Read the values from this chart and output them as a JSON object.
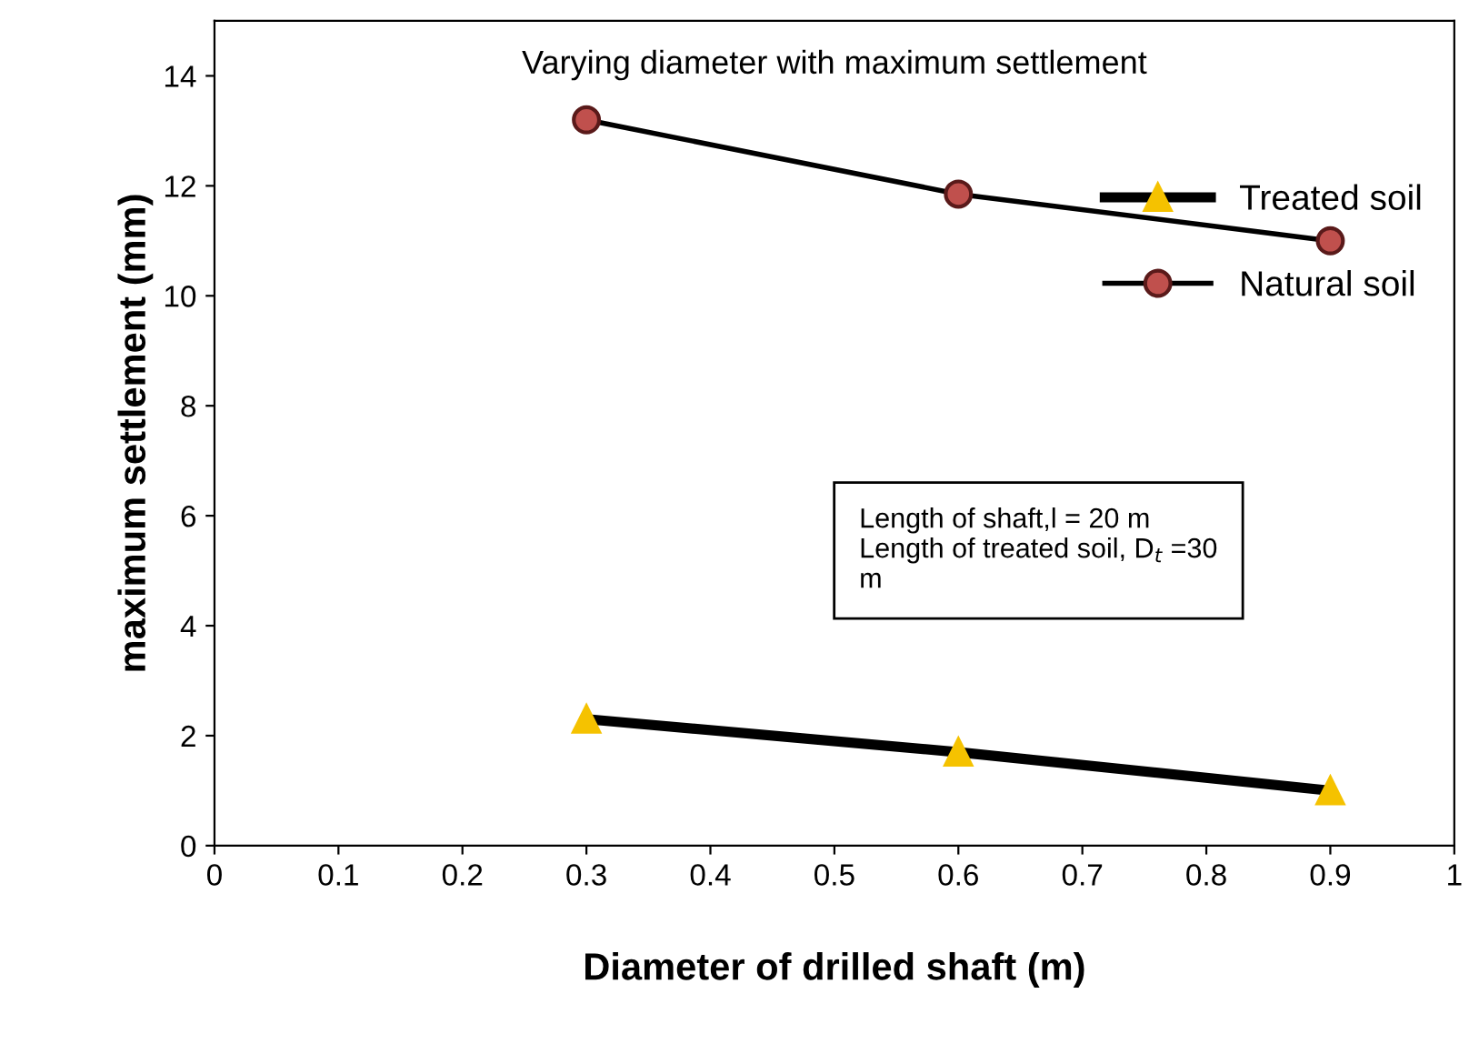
{
  "chart_data": {
    "type": "line",
    "title": "Varying diameter with maximum settlement",
    "xlabel": "Diameter of drilled shaft (m)",
    "ylabel": "maximum settlement (mm)",
    "x": [
      0.3,
      0.6,
      0.9
    ],
    "series": [
      {
        "name": "Treated soil",
        "color": "#f5c200",
        "marker": "triangle",
        "values": [
          2.3,
          1.7,
          1.0
        ]
      },
      {
        "name": "Natural soil",
        "color": "#c0504d",
        "marker": "circle",
        "values": [
          13.2,
          11.85,
          11.0
        ]
      }
    ],
    "annotations": [
      "Length of shaft,l = 20 m\nLength of treated soil, D$_{t}$ =30\nm"
    ],
    "xlim": [
      0,
      1
    ],
    "xticks": [
      0,
      0.1,
      0.2,
      0.3,
      0.4,
      0.5,
      0.6,
      0.7,
      0.8,
      0.9,
      1
    ],
    "ylim": [
      0,
      15
    ],
    "yticks": [
      0,
      2,
      4,
      6,
      8,
      10,
      12,
      14
    ],
    "grid": false,
    "legend": "right",
    "line_style": "solid"
  }
}
